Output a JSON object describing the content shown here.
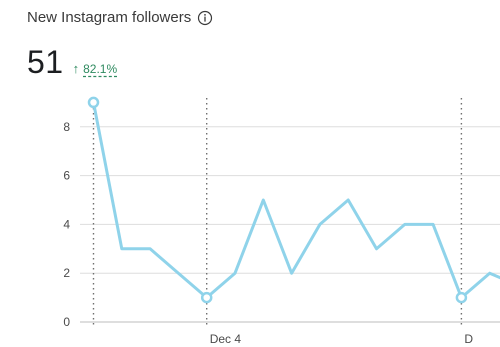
{
  "header": {
    "title": "New Instagram followers",
    "info_icon": "info-icon"
  },
  "metric": {
    "value": "51",
    "change_icon": "arrow-up-icon",
    "change": "82.1%"
  },
  "colors": {
    "line": "#8fd3ea",
    "change": "#2e8a5f",
    "grid": "#dddddd"
  },
  "chart_data": {
    "type": "line",
    "title": "",
    "xlabel": "",
    "ylabel": "",
    "x_tick_labels": [
      "Dec 4",
      "D"
    ],
    "y_ticks": [
      0,
      2,
      4,
      6,
      8
    ],
    "ylim": [
      0,
      9
    ],
    "grid": true,
    "series": [
      {
        "values": [
          9,
          3,
          3,
          2,
          1,
          2,
          5,
          2,
          4,
          5,
          3,
          4,
          4,
          1,
          2,
          1.5
        ],
        "highlighted_points": [
          0,
          4,
          13
        ]
      }
    ]
  }
}
